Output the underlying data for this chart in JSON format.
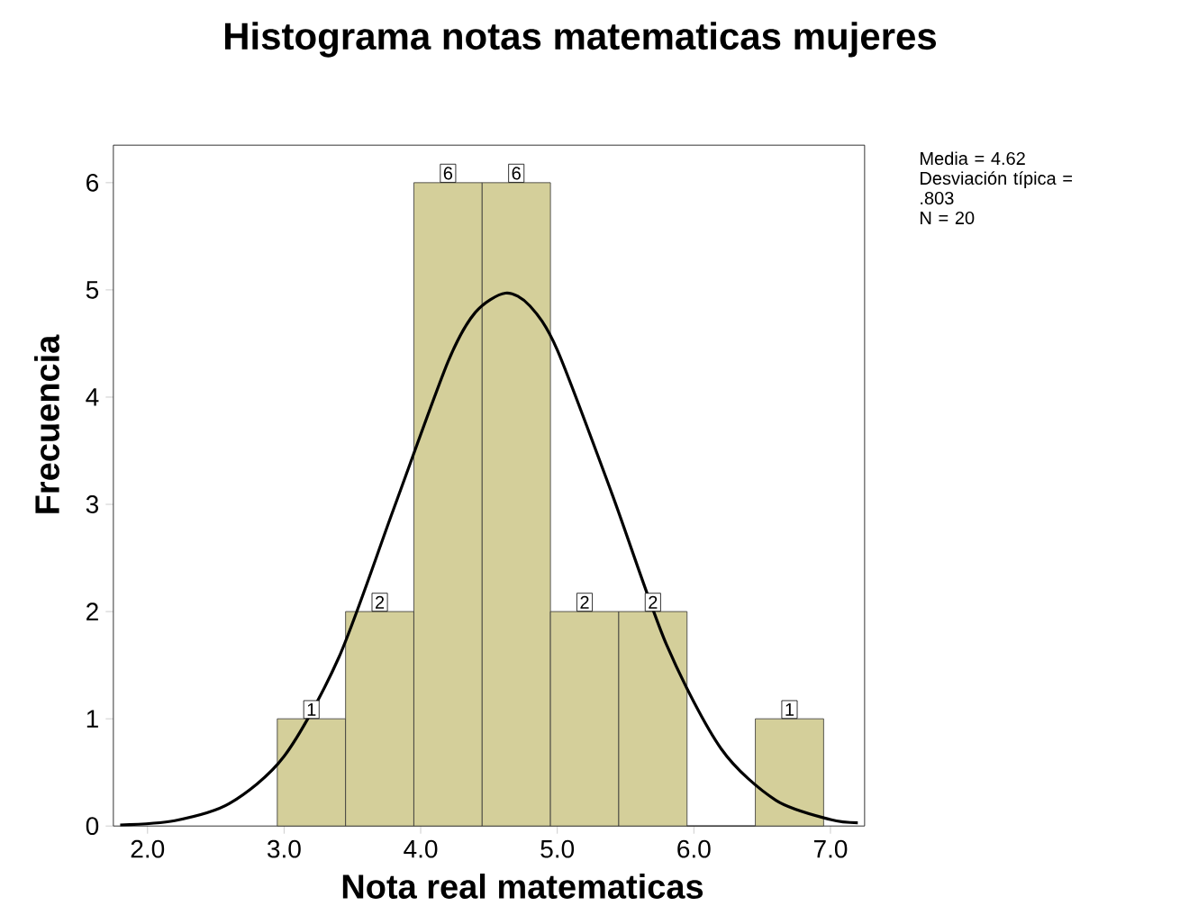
{
  "chart_data": {
    "type": "histogram",
    "title": "Histograma notas matematicas mujeres",
    "xlabel": "Nota real matematicas",
    "ylabel": "Frecuencia",
    "bins": [
      2.95,
      3.45,
      3.95,
      4.45,
      4.95,
      5.45,
      5.95,
      6.45,
      6.95
    ],
    "values": [
      1,
      2,
      6,
      6,
      2,
      2,
      0,
      1
    ],
    "value_labels": [
      "1",
      "2",
      "6",
      "6",
      "2",
      "2",
      null,
      "1"
    ],
    "color": "#d4cf9a",
    "series": [
      {
        "type": "line",
        "color": "#000000",
        "x": [
          1.8,
          2.2,
          2.6,
          3.0,
          3.4,
          3.8,
          4.2,
          4.4,
          4.62,
          4.8,
          5.0,
          5.4,
          5.8,
          6.2,
          6.6,
          7.0,
          7.2
        ],
        "values": [
          0.01,
          0.05,
          0.21,
          0.65,
          1.57,
          2.95,
          4.33,
          4.79,
          4.97,
          4.85,
          4.44,
          3.1,
          1.69,
          0.72,
          0.24,
          0.06,
          0.03
        ]
      }
    ],
    "xlim": [
      1.75,
      7.25
    ],
    "ylim": [
      0,
      6.35
    ],
    "xticks": [
      {
        "value": 2,
        "label": "2.0"
      },
      {
        "value": 3,
        "label": "3.0"
      },
      {
        "value": 4,
        "label": "4.0"
      },
      {
        "value": 5,
        "label": "5.0"
      },
      {
        "value": 6,
        "label": "6.0"
      },
      {
        "value": 7,
        "label": "7.0"
      }
    ],
    "yticks": [
      0,
      1,
      2,
      3,
      4,
      5,
      6
    ],
    "annotations": [
      "Media = 4.62",
      "Desviación típica = .803",
      "N = 20"
    ],
    "grid": false,
    "marker": "none"
  }
}
